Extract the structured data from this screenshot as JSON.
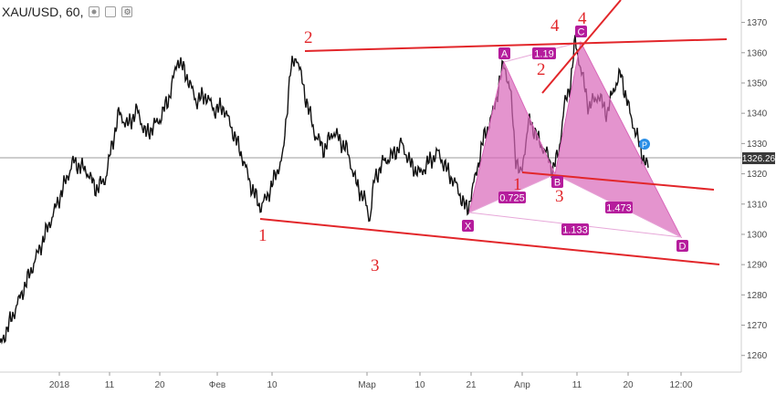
{
  "header": {
    "symbol": "XAU/USD, 60,",
    "dot_icon": "circle-dot-icon",
    "square_icon": "square-icon",
    "gear_icon": "gear-icon"
  },
  "colors": {
    "wave_lines": "#e2262a",
    "harmonic_fill": "#d966b9",
    "harmonic_point": "#b51c9c",
    "price_label_bg": "#3a3a3a",
    "price_label_text": "#ffffff"
  },
  "chart_data": {
    "type": "line",
    "instrument": "XAU/USD, 60,",
    "ylim": [
      1256,
      1375
    ],
    "y_ticks": [
      1260,
      1270,
      1280,
      1290,
      1300,
      1310,
      1320,
      1330,
      1340,
      1350,
      1360,
      1370
    ],
    "x_ticks": [
      "2018",
      "11",
      "20",
      "Фев",
      "10",
      "Мар",
      "10",
      "21",
      "Апр",
      "11",
      "20",
      "12:00"
    ],
    "current_price": "1326.26",
    "series": [
      {
        "x": [
          0,
          30,
          60,
          80,
          95,
          105,
          115,
          130,
          140,
          150,
          160,
          175,
          185,
          195,
          205,
          215,
          225,
          235,
          245,
          255,
          265,
          275,
          285,
          292,
          300,
          310,
          318,
          325,
          335,
          345,
          355,
          365,
          380,
          390,
          400,
          405,
          410,
          420,
          430,
          440,
          450,
          460,
          470,
          480,
          490,
          500,
          508,
          512,
          520,
          530,
          540,
          552,
          560,
          565,
          570,
          580,
          590,
          600,
          605,
          612,
          618,
          625,
          630,
          638,
          645,
          655,
          665,
          672,
          680,
          690,
          700,
          705,
          710
        ],
        "values": [
          1263,
          1285,
          1308,
          1324,
          1321,
          1315,
          1318,
          1340,
          1336,
          1341,
          1333,
          1338,
          1345,
          1358,
          1352,
          1344,
          1346,
          1341,
          1342,
          1334,
          1326,
          1316,
          1309,
          1312,
          1318,
          1326,
          1354,
          1359,
          1345,
          1333,
          1328,
          1334,
          1328,
          1317,
          1311,
          1305,
          1318,
          1324,
          1326,
          1330,
          1323,
          1320,
          1324,
          1327,
          1321,
          1316,
          1310,
          1308,
          1318,
          1332,
          1340,
          1357,
          1345,
          1325,
          1319,
          1338,
          1331,
          1326,
          1321,
          1327,
          1342,
          1350,
          1364,
          1352,
          1342,
          1346,
          1340,
          1348,
          1353,
          1340,
          1330,
          1325,
          1322
        ]
      }
    ],
    "wave_labels": [
      "1",
      "2",
      "3",
      "1",
      "2",
      "3",
      "4",
      "4"
    ],
    "harmonic_points": [
      "X",
      "A",
      "B",
      "C",
      "D",
      "P"
    ],
    "ratios": [
      "1.19",
      "0.725",
      "1.473",
      "1.133"
    ]
  }
}
